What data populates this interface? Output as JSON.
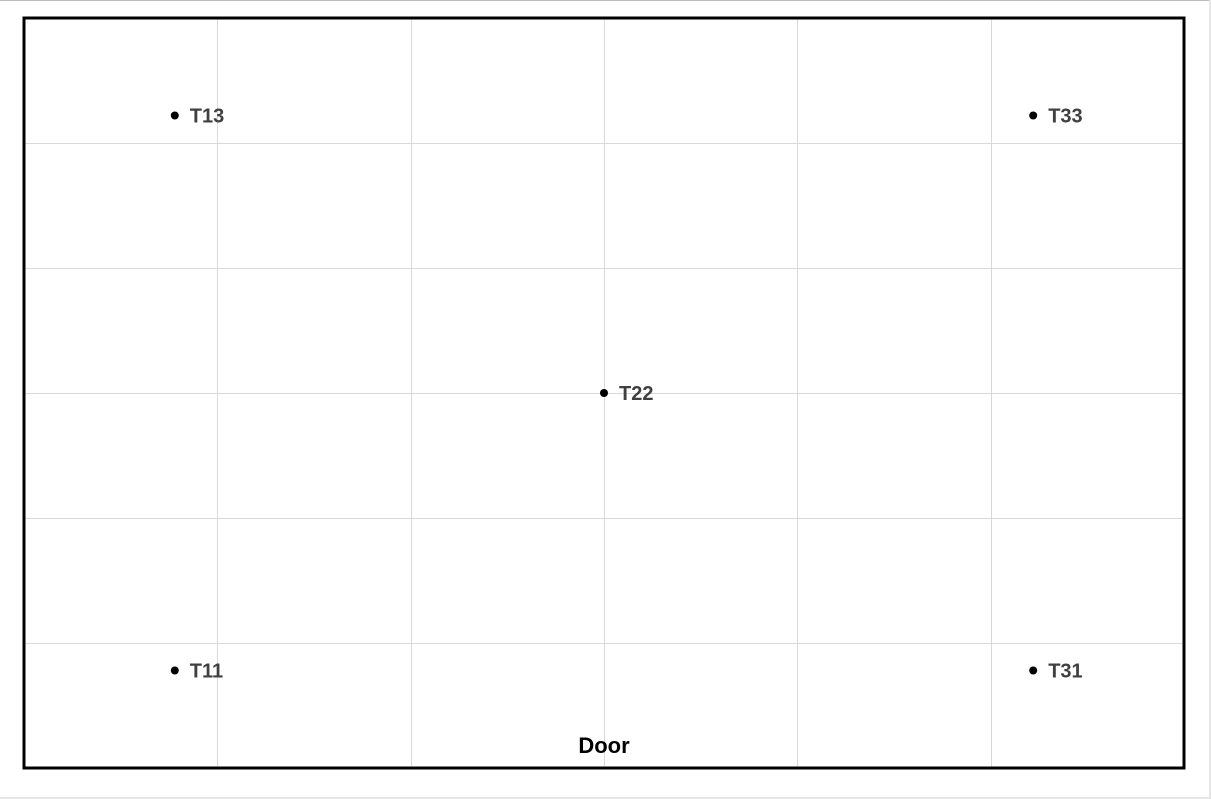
{
  "diagram": {
    "grid": {
      "columns": 6,
      "rows": 6,
      "grid_color": "#d9d9d9",
      "border_color": "#000000"
    },
    "sensors": [
      {
        "id": "t13",
        "label": "T13",
        "col": 0.78,
        "row": 0.78
      },
      {
        "id": "t33",
        "label": "T33",
        "col": 5.22,
        "row": 0.78
      },
      {
        "id": "t22",
        "label": "T22",
        "col": 3.0,
        "row": 3.0
      },
      {
        "id": "t11",
        "label": "T11",
        "col": 0.78,
        "row": 5.22
      },
      {
        "id": "t31",
        "label": "T31",
        "col": 5.22,
        "row": 5.22
      }
    ],
    "door": {
      "label": "Door"
    },
    "label_color": "#404040",
    "dot_color": "#000000"
  }
}
